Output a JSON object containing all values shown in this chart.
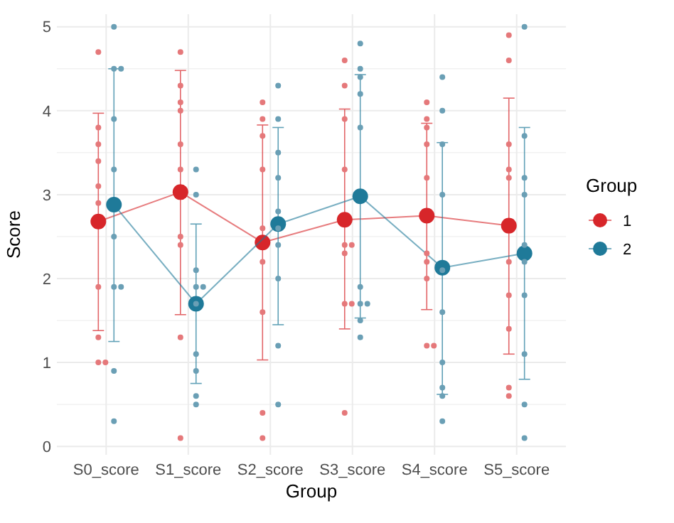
{
  "chart_data": {
    "type": "line",
    "xlabel": "Group",
    "ylabel": "Score",
    "legend_title": "Group",
    "legend": "right",
    "grid": true,
    "marker": "circle",
    "categories": [
      "S0_score",
      "S1_score",
      "S2_score",
      "S3_score",
      "S4_score",
      "S5_score"
    ],
    "ylim": [
      -0.1,
      5.15
    ],
    "yticks": [
      0,
      {
        "value": 0.5,
        "label": null
      },
      1,
      {
        "value": 1.5,
        "label": null
      },
      2,
      {
        "value": 2.5,
        "label": null
      },
      3,
      {
        "value": 3.5,
        "label": null
      },
      4,
      {
        "value": 4.5,
        "label": null
      },
      5
    ],
    "series": [
      {
        "type": "scatter",
        "color": "#e5787a",
        "x": [
          "S0_score",
          "S0_score",
          "S0_score",
          "S0_score",
          "S0_score",
          "S0_score",
          "S0_score",
          "S0_score",
          "S0_score",
          "S0_score",
          "S1_score",
          "S1_score",
          "S1_score",
          "S1_score",
          "S1_score",
          "S1_score",
          "S1_score",
          "S1_score",
          "S1_score",
          "S1_score",
          "S2_score",
          "S2_score",
          "S2_score",
          "S2_score",
          "S2_score",
          "S2_score",
          "S2_score",
          "S2_score",
          "S2_score",
          "S3_score",
          "S3_score",
          "S3_score",
          "S3_score",
          "S3_score",
          "S3_score",
          "S3_score",
          "S3_score",
          "S3_score",
          "S3_score",
          "S4_score",
          "S4_score",
          "S4_score",
          "S4_score",
          "S4_score",
          "S4_score",
          "S4_score",
          "S4_score",
          "S4_score",
          "S4_score",
          "S5_score",
          "S5_score",
          "S5_score",
          "S5_score",
          "S5_score",
          "S5_score",
          "S5_score",
          "S5_score",
          "S5_score",
          "S5_score"
        ],
        "values": [
          4.7,
          3.8,
          3.6,
          3.4,
          3.1,
          2.9,
          1.9,
          1.3,
          1.0,
          1.0,
          4.7,
          4.3,
          4.1,
          4.0,
          3.6,
          3.3,
          2.5,
          2.4,
          1.3,
          0.1,
          4.1,
          3.9,
          3.7,
          3.3,
          2.6,
          2.2,
          1.6,
          0.4,
          0.1,
          4.6,
          4.3,
          3.9,
          3.3,
          2.4,
          2.4,
          2.3,
          1.7,
          1.7,
          0.4,
          4.1,
          3.9,
          3.8,
          3.6,
          3.2,
          2.3,
          2.2,
          2.0,
          1.2,
          1.2,
          4.9,
          4.6,
          3.6,
          3.3,
          3.2,
          2.2,
          1.8,
          1.4,
          0.7,
          0.6
        ]
      },
      {
        "type": "scatter",
        "color": "#6a9fb5",
        "x": [
          "S0_score",
          "S0_score",
          "S0_score",
          "S0_score",
          "S0_score",
          "S0_score",
          "S0_score",
          "S0_score",
          "S0_score",
          "S0_score",
          "S1_score",
          "S1_score",
          "S1_score",
          "S1_score",
          "S1_score",
          "S1_score",
          "S1_score",
          "S1_score",
          "S1_score",
          "S1_score",
          "S2_score",
          "S2_score",
          "S2_score",
          "S2_score",
          "S2_score",
          "S2_score",
          "S2_score",
          "S2_score",
          "S2_score",
          "S2_score",
          "S3_score",
          "S3_score",
          "S3_score",
          "S3_score",
          "S3_score",
          "S3_score",
          "S3_score",
          "S3_score",
          "S3_score",
          "S3_score",
          "S4_score",
          "S4_score",
          "S4_score",
          "S4_score",
          "S4_score",
          "S4_score",
          "S4_score",
          "S4_score",
          "S4_score",
          "S4_score",
          "S5_score",
          "S5_score",
          "S5_score",
          "S5_score",
          "S5_score",
          "S5_score",
          "S5_score",
          "S5_score",
          "S5_score",
          "S5_score"
        ],
        "values": [
          5.0,
          4.5,
          4.5,
          3.9,
          3.3,
          2.5,
          1.9,
          1.9,
          0.9,
          0.3,
          3.3,
          3.0,
          2.1,
          1.9,
          1.9,
          1.7,
          1.1,
          0.9,
          0.6,
          0.5,
          4.3,
          3.9,
          3.5,
          3.2,
          2.8,
          2.6,
          2.4,
          2.0,
          1.2,
          0.5,
          4.8,
          4.5,
          4.4,
          4.2,
          3.8,
          1.9,
          1.7,
          1.7,
          1.5,
          1.3,
          4.4,
          4.0,
          3.6,
          3.0,
          2.1,
          1.6,
          1.0,
          0.7,
          0.6,
          0.3,
          5.0,
          3.7,
          3.2,
          3.0,
          2.4,
          2.2,
          1.8,
          1.1,
          0.5,
          0.1
        ]
      },
      {
        "name": "1",
        "color": "#d7262a",
        "values": [
          2.68,
          3.03,
          2.43,
          2.7,
          2.75,
          2.63
        ],
        "errors": [
          [
            1.38,
            3.97
          ],
          [
            1.57,
            4.48
          ],
          [
            1.03,
            3.83
          ],
          [
            1.4,
            4.02
          ],
          [
            1.63,
            3.85
          ],
          [
            1.1,
            4.15
          ]
        ]
      },
      {
        "name": "2",
        "color": "#1f7a99",
        "values": [
          2.88,
          1.7,
          2.65,
          2.98,
          2.13,
          2.3
        ],
        "errors": [
          [
            1.25,
            4.5
          ],
          [
            0.75,
            2.65
          ],
          [
            1.45,
            3.8
          ],
          [
            1.53,
            4.43
          ],
          [
            0.62,
            3.62
          ],
          [
            0.8,
            3.8
          ]
        ]
      }
    ]
  }
}
